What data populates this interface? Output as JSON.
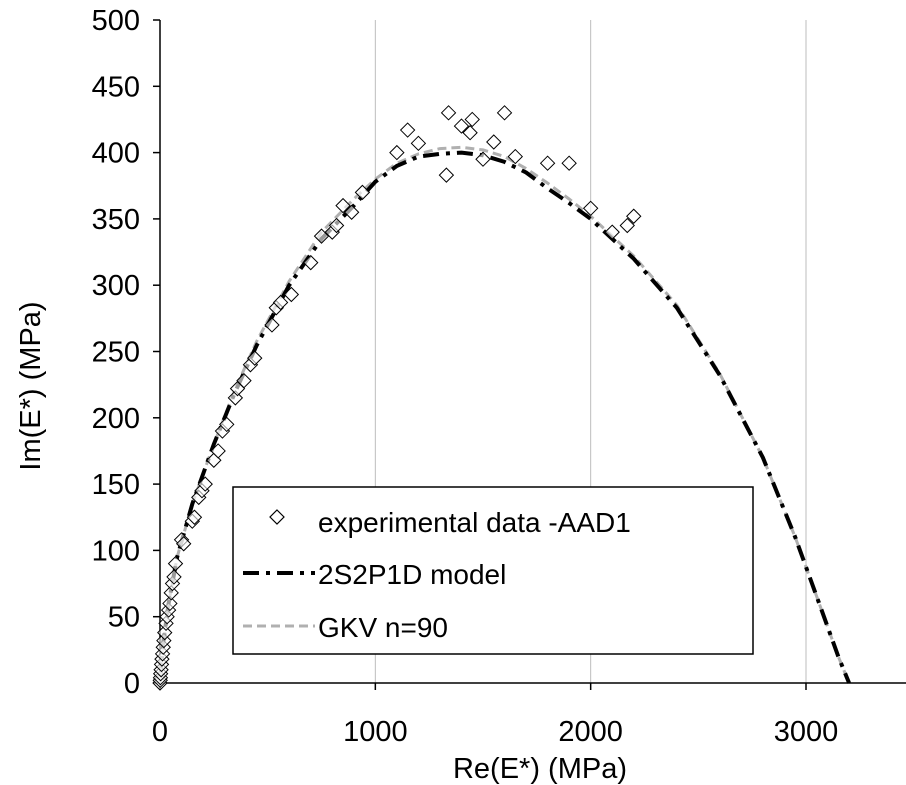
{
  "chart_data": {
    "type": "scatter",
    "title": "",
    "xlabel": "Re(E*) (MPa)",
    "ylabel": "Im(E*) (MPa)",
    "xlim": [
      0,
      3500
    ],
    "ylim": [
      0,
      500
    ],
    "x_ticks": [
      "0",
      "1000",
      "2000",
      "3000"
    ],
    "x_tick_values": [
      0,
      1000,
      2000,
      3000
    ],
    "y_ticks": [
      "0",
      "50",
      "100",
      "150",
      "200",
      "250",
      "300",
      "350",
      "400",
      "450",
      "500"
    ],
    "y_tick_values": [
      0,
      50,
      100,
      150,
      200,
      250,
      300,
      350,
      400,
      450,
      500
    ],
    "grid": "vertical",
    "legend_position": "bottom-left",
    "series": [
      {
        "name": "experimental data  -AAD1",
        "kind": "scatter",
        "marker": "diamond-open",
        "points": [
          [
            0,
            0
          ],
          [
            1,
            2
          ],
          [
            2,
            4
          ],
          [
            3,
            7
          ],
          [
            5,
            10
          ],
          [
            7,
            14
          ],
          [
            9,
            18
          ],
          [
            12,
            22
          ],
          [
            15,
            27
          ],
          [
            18,
            32
          ],
          [
            22,
            38
          ],
          [
            28,
            45
          ],
          [
            33,
            50
          ],
          [
            40,
            55
          ],
          [
            46,
            60
          ],
          [
            52,
            68
          ],
          [
            58,
            75
          ],
          [
            65,
            80
          ],
          [
            72,
            90
          ],
          [
            100,
            108
          ],
          [
            110,
            105
          ],
          [
            150,
            122
          ],
          [
            160,
            125
          ],
          [
            180,
            140
          ],
          [
            195,
            145
          ],
          [
            210,
            150
          ],
          [
            250,
            168
          ],
          [
            270,
            175
          ],
          [
            290,
            190
          ],
          [
            310,
            195
          ],
          [
            350,
            215
          ],
          [
            360,
            222
          ],
          [
            390,
            228
          ],
          [
            420,
            240
          ],
          [
            440,
            245
          ],
          [
            520,
            270
          ],
          [
            540,
            283
          ],
          [
            560,
            287
          ],
          [
            610,
            293
          ],
          [
            700,
            317
          ],
          [
            750,
            337
          ],
          [
            800,
            340
          ],
          [
            820,
            345
          ],
          [
            850,
            360
          ],
          [
            890,
            355
          ],
          [
            940,
            370
          ],
          [
            1100,
            400
          ],
          [
            1150,
            417
          ],
          [
            1200,
            407
          ],
          [
            1330,
            383
          ],
          [
            1340,
            430
          ],
          [
            1400,
            420
          ],
          [
            1440,
            415
          ],
          [
            1450,
            425
          ],
          [
            1500,
            395
          ],
          [
            1550,
            408
          ],
          [
            1600,
            430
          ],
          [
            1650,
            397
          ],
          [
            1800,
            392
          ],
          [
            1900,
            392
          ],
          [
            2000,
            358
          ],
          [
            2100,
            340
          ],
          [
            2170,
            345
          ],
          [
            2200,
            352
          ]
        ]
      },
      {
        "name": "2S2P1D model",
        "kind": "line",
        "style": "dash-dot",
        "color": "#000000",
        "points": [
          [
            0,
            0
          ],
          [
            15,
            30
          ],
          [
            40,
            60
          ],
          [
            80,
            95
          ],
          [
            150,
            135
          ],
          [
            250,
            180
          ],
          [
            350,
            220
          ],
          [
            450,
            255
          ],
          [
            600,
            300
          ],
          [
            750,
            335
          ],
          [
            900,
            360
          ],
          [
            1000,
            378
          ],
          [
            1100,
            390
          ],
          [
            1200,
            397
          ],
          [
            1300,
            399
          ],
          [
            1400,
            400
          ],
          [
            1500,
            398
          ],
          [
            1600,
            393
          ],
          [
            1700,
            385
          ],
          [
            1800,
            373
          ],
          [
            1900,
            362
          ],
          [
            2000,
            350
          ],
          [
            2200,
            320
          ],
          [
            2400,
            283
          ],
          [
            2600,
            232
          ],
          [
            2800,
            170
          ],
          [
            2950,
            110
          ],
          [
            3050,
            65
          ],
          [
            3150,
            20
          ],
          [
            3200,
            0
          ]
        ]
      },
      {
        "name": "GKV n=90",
        "kind": "line",
        "style": "dashed",
        "color": "#b0b0b0",
        "points": [
          [
            0,
            0
          ],
          [
            15,
            30
          ],
          [
            40,
            60
          ],
          [
            80,
            95
          ],
          [
            150,
            135
          ],
          [
            250,
            180
          ],
          [
            350,
            222
          ],
          [
            450,
            258
          ],
          [
            600,
            303
          ],
          [
            750,
            340
          ],
          [
            900,
            365
          ],
          [
            1000,
            380
          ],
          [
            1100,
            392
          ],
          [
            1200,
            399
          ],
          [
            1300,
            403
          ],
          [
            1400,
            404
          ],
          [
            1500,
            402
          ],
          [
            1600,
            397
          ],
          [
            1700,
            388
          ],
          [
            1800,
            377
          ],
          [
            1900,
            365
          ],
          [
            2000,
            352
          ],
          [
            2200,
            322
          ],
          [
            2400,
            285
          ],
          [
            2600,
            233
          ],
          [
            2800,
            170
          ],
          [
            2950,
            110
          ],
          [
            3050,
            65
          ],
          [
            3150,
            20
          ],
          [
            3200,
            0
          ]
        ]
      }
    ]
  }
}
